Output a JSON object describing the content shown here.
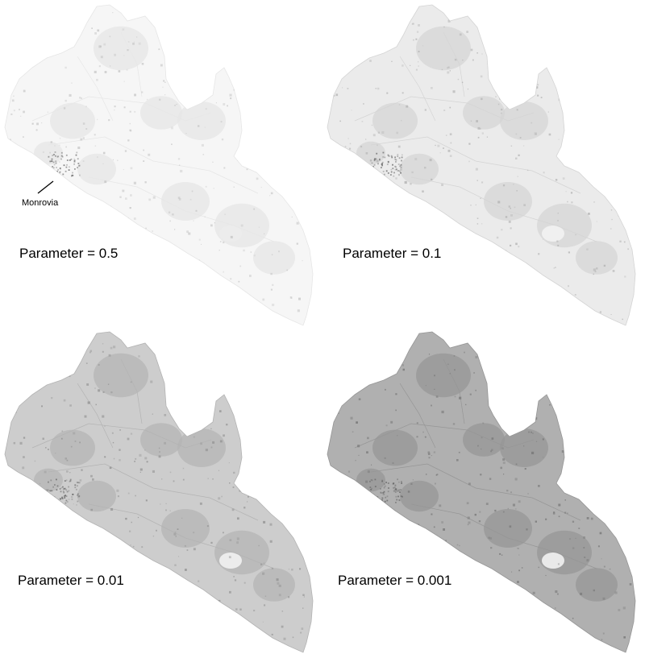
{
  "annotation": {
    "city": "Monrovia"
  },
  "panels": [
    {
      "label": "Parameter = 0.5",
      "shade": {
        "base": "#f6f6f6",
        "dark": "#e6e6e6",
        "speck": "#c8c8c8"
      }
    },
    {
      "label": "Parameter = 0.1",
      "shade": {
        "base": "#ebebeb",
        "dark": "#d4d4d4",
        "speck": "#b4b4b4"
      }
    },
    {
      "label": "Parameter = 0.01",
      "shade": {
        "base": "#cdcdcd",
        "dark": "#b3b3b3",
        "speck": "#949494"
      }
    },
    {
      "label": "Parameter = 0.001",
      "shade": {
        "base": "#b0b0b0",
        "dark": "#969696",
        "speck": "#7a7a7a"
      }
    }
  ]
}
